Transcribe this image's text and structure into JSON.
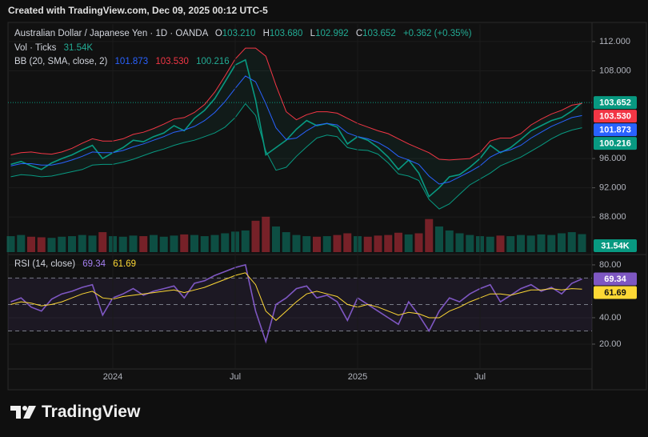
{
  "header": {
    "created": "Created with TradingView.com, Dec 09, 2025 00:12 UTC-5"
  },
  "footer": {
    "brand": "TradingView"
  },
  "chart_data": [
    {
      "type": "line",
      "title": "Australian Dollar / Japanese Yen · 1D · OANDA",
      "ohlc": [
        {
          "key": "O",
          "text": "103.210"
        },
        {
          "key": "H",
          "text": "103.680"
        },
        {
          "key": "L",
          "text": "102.992"
        },
        {
          "key": "C",
          "text": "103.652"
        }
      ],
      "change": "+0.362 (+0.35%)",
      "bb_legend": "BB (20, SMA, close, 2)",
      "categories": [
        null,
        null,
        null,
        null,
        null,
        null,
        null,
        null,
        null,
        null,
        "2024",
        null,
        null,
        null,
        null,
        null,
        null,
        null,
        null,
        null,
        null,
        null,
        "Jul",
        null,
        null,
        null,
        null,
        null,
        null,
        null,
        null,
        null,
        null,
        null,
        "2025",
        null,
        null,
        null,
        null,
        null,
        null,
        null,
        null,
        null,
        null,
        null,
        "Jul",
        null,
        null,
        null,
        null,
        null,
        null,
        null,
        null,
        null,
        null
      ],
      "series": [
        {
          "color": "#089981",
          "last_label": "103.652",
          "values": [
            95.2,
            95.6,
            95.0,
            94.5,
            95.4,
            96.0,
            96.5,
            97.2,
            97.8,
            96.0,
            96.8,
            97.5,
            98.5,
            98.3,
            99.0,
            99.5,
            100.5,
            99.8,
            101.5,
            102.6,
            104.2,
            106.5,
            108.8,
            109.5,
            104.0,
            96.5,
            97.5,
            98.5,
            100.0,
            101.2,
            100.5,
            100.8,
            100.3,
            98.0,
            99.0,
            98.5,
            97.5,
            96.2,
            94.5,
            95.8,
            94.0,
            90.8,
            92.0,
            93.5,
            93.8,
            94.8,
            96.0,
            97.8,
            96.8,
            97.5,
            98.6,
            99.8,
            100.5,
            101.2,
            101.6,
            102.5,
            103.652
          ]
        },
        {
          "color": "#2962ff",
          "last_label": "101.873",
          "values": [
            95.0,
            95.3,
            95.3,
            95.1,
            95.1,
            95.4,
            95.8,
            96.3,
            96.9,
            96.8,
            96.8,
            97.1,
            97.6,
            98.0,
            98.5,
            99.0,
            99.6,
            99.9,
            100.4,
            101.2,
            102.3,
            103.8,
            105.6,
            107.3,
            106.5,
            103.5,
            100.2,
            98.6,
            98.8,
            99.8,
            100.6,
            100.8,
            100.6,
            99.5,
            99.0,
            98.7,
            98.2,
            97.4,
            96.3,
            95.8,
            95.2,
            93.6,
            92.5,
            92.8,
            93.5,
            94.2,
            95.0,
            96.2,
            96.9,
            97.2,
            97.8,
            98.8,
            99.6,
            100.4,
            101.0,
            101.6,
            101.873
          ]
        },
        {
          "color": "#f23645",
          "last_label": "103.530",
          "values": [
            96.5,
            96.8,
            96.9,
            96.7,
            96.6,
            96.9,
            97.4,
            98.1,
            98.7,
            98.4,
            98.4,
            98.7,
            99.3,
            99.6,
            100.1,
            100.7,
            101.4,
            101.6,
            102.3,
            103.4,
            105.1,
            107.3,
            109.6,
            111.1,
            111.1,
            110.0,
            106.0,
            102.4,
            101.3,
            102.0,
            102.4,
            102.4,
            102.2,
            101.5,
            100.8,
            100.3,
            99.8,
            99.4,
            98.7,
            98.0,
            97.4,
            96.8,
            95.9,
            95.8,
            95.9,
            96.0,
            96.8,
            98.4,
            98.8,
            98.8,
            99.4,
            100.6,
            101.4,
            102.1,
            102.6,
            103.3,
            103.53
          ]
        },
        {
          "color": "#089981",
          "last_label": "100.216",
          "values": [
            93.5,
            93.8,
            93.7,
            93.5,
            93.6,
            93.9,
            94.2,
            94.5,
            95.1,
            95.2,
            95.2,
            95.5,
            95.9,
            96.4,
            96.9,
            97.3,
            97.8,
            98.2,
            98.5,
            99.0,
            99.5,
            100.3,
            101.6,
            103.5,
            101.9,
            97.0,
            94.4,
            94.8,
            96.3,
            97.6,
            98.8,
            99.2,
            99.0,
            97.5,
            97.2,
            97.1,
            96.6,
            95.4,
            93.9,
            93.6,
            93.0,
            90.4,
            89.1,
            89.8,
            91.1,
            92.4,
            93.2,
            94.0,
            95.0,
            95.6,
            96.2,
            97.0,
            97.8,
            98.7,
            99.4,
            99.9,
            100.216
          ]
        },
        {
          "name": "Vol · Ticks",
          "axis": "y2",
          "color": "#089981",
          "last_label": "31.54K",
          "values": [
            28,
            30,
            27,
            26,
            25,
            27,
            28,
            30,
            29,
            35,
            28,
            27,
            29,
            28,
            30,
            27,
            29,
            31,
            30,
            28,
            30,
            33,
            36,
            38,
            55,
            62,
            45,
            35,
            30,
            28,
            27,
            28,
            30,
            33,
            28,
            27,
            29,
            30,
            34,
            31,
            33,
            58,
            45,
            38,
            33,
            30,
            28,
            27,
            29,
            28,
            30,
            29,
            31,
            30,
            33,
            35,
            31.54
          ]
        }
      ],
      "ylim": [
        83.2,
        114.4
      ],
      "yticks": [
        {
          "value": 112,
          "label": "112.000"
        },
        {
          "value": 108,
          "label": "108.000"
        },
        {
          "value": 96,
          "label": "96.000"
        },
        {
          "value": 92,
          "label": "92.000"
        },
        {
          "value": 88,
          "label": "88.000"
        }
      ],
      "y2lim": [
        0,
        400
      ]
    },
    {
      "type": "line",
      "title": "RSI (14, close)",
      "series": [
        {
          "color": "#7e57c2",
          "last_label": "69.34",
          "values": [
            52,
            55,
            48,
            45,
            54,
            58,
            60,
            63,
            65,
            42,
            55,
            58,
            62,
            57,
            60,
            62,
            64,
            55,
            66,
            68,
            72,
            75,
            78,
            80,
            45,
            22,
            50,
            55,
            62,
            64,
            55,
            57,
            52,
            38,
            55,
            50,
            45,
            40,
            35,
            52,
            42,
            30,
            45,
            55,
            52,
            58,
            62,
            65,
            52,
            57,
            62,
            65,
            60,
            63,
            58,
            66,
            69.34
          ]
        },
        {
          "color": "#fdd835",
          "last_label": "61.69",
          "values": [
            50,
            52,
            51,
            49,
            50,
            52,
            55,
            58,
            60,
            55,
            54,
            56,
            57,
            58,
            59,
            60,
            61,
            59,
            61,
            63,
            66,
            69,
            72,
            74,
            65,
            45,
            38,
            45,
            52,
            58,
            60,
            58,
            56,
            50,
            48,
            50,
            48,
            45,
            42,
            44,
            43,
            40,
            40,
            45,
            48,
            52,
            55,
            58,
            58,
            57,
            59,
            61,
            61,
            62,
            61,
            62,
            61.69
          ]
        }
      ],
      "ylim": [
        1.8,
        84.2
      ],
      "yticks": [
        {
          "value": 80,
          "label": "80.00"
        },
        {
          "value": 40,
          "label": "40.00"
        },
        {
          "value": 20,
          "label": "20.00"
        }
      ],
      "bands": [
        70,
        50,
        30
      ]
    }
  ]
}
